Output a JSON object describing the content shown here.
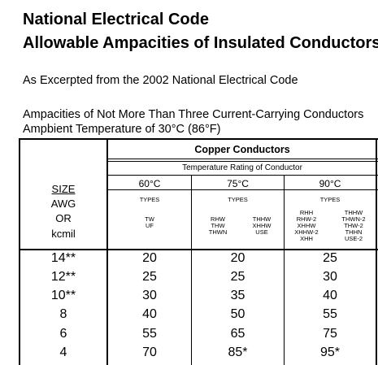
{
  "title_line1": "National Electrical Code",
  "title_line2": "Allowable Ampacities of Insulated Conductors",
  "excerpt_note": "As Excerpted from the 2002 National Electrical Code",
  "ampacity_desc": "Ampacities of Not More Than Three Current-Carrying Conductors",
  "ambient_temp": "Ampbient Temperature of 30°C (86°F)",
  "table": {
    "group_header": "Copper Conductors",
    "rating_header": "Temperature Rating of Conductor",
    "temps": [
      "60°C",
      "75°C",
      "90°C"
    ],
    "types_label": "TYPES",
    "size_col": {
      "size": "SIZE",
      "awg": "AWG",
      "or": "OR",
      "kcmil": "kcmil"
    },
    "types_60": [
      "TW",
      "UF"
    ],
    "types_75a": [
      "RHW",
      "THW",
      "THWN"
    ],
    "types_75b": [
      "THHW",
      "XHHW",
      "USE"
    ],
    "types_90a": [
      "RHH",
      "RHW-2",
      "XHHW",
      "XHHW-2",
      "XHH"
    ],
    "types_90b": [
      "THHW",
      "THWN-2",
      "THW-2",
      "THHN",
      "USE-2"
    ],
    "rows": [
      {
        "size": "14**",
        "c60": "20",
        "c75": "20",
        "c90": "25"
      },
      {
        "size": "12**",
        "c60": "25",
        "c75": "25",
        "c90": "30"
      },
      {
        "size": "10**",
        "c60": "30",
        "c75": "35",
        "c90": "40"
      },
      {
        "size": "8",
        "c60": "40",
        "c75": "50",
        "c90": "55"
      },
      {
        "size": "6",
        "c60": "55",
        "c75": "65",
        "c90": "75"
      },
      {
        "size": "4",
        "c60": "70",
        "c75": "85*",
        "c90": "95*"
      }
    ]
  }
}
